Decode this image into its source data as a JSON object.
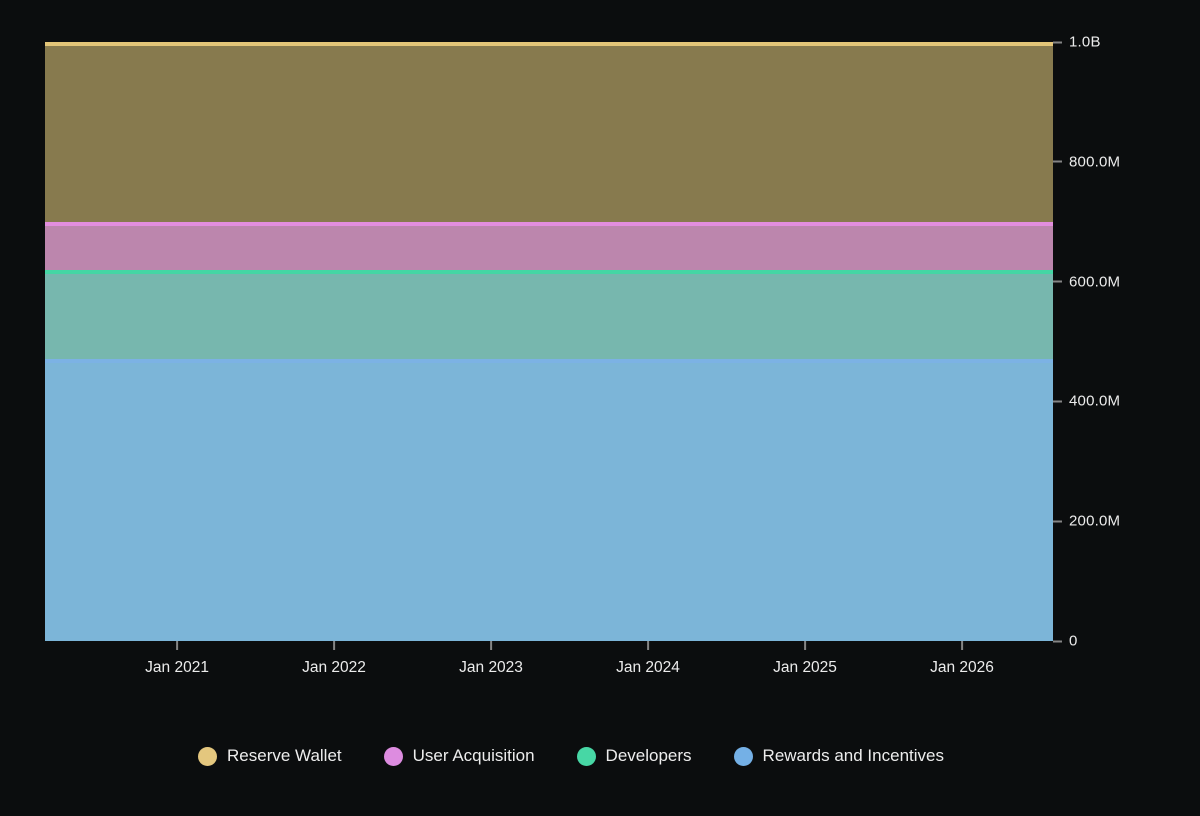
{
  "chart_data": {
    "type": "area",
    "stacked": true,
    "title": "",
    "xlabel": "",
    "ylabel": "",
    "canvas_bg": "#0b0d0e",
    "axis_text_color": "#ececec",
    "tick_mark_color": "#858585",
    "grid": false,
    "legend_position": "bottom-center",
    "y_axis": {
      "min": 0,
      "max": 1000000000,
      "side": "right",
      "ticks": [
        {
          "label": "1.0B",
          "value": 1000000000
        },
        {
          "label": "800.0M",
          "value": 800000000
        },
        {
          "label": "600.0M",
          "value": 600000000
        },
        {
          "label": "400.0M",
          "value": 400000000
        },
        {
          "label": "200.0M",
          "value": 200000000
        },
        {
          "label": "0",
          "value": 0
        }
      ]
    },
    "x_axis": {
      "ticks": [
        {
          "label": "Jan 2021",
          "pos": 0.131
        },
        {
          "label": "Jan 2022",
          "pos": 0.2867
        },
        {
          "label": "Jan 2023",
          "pos": 0.4425
        },
        {
          "label": "Jan 2024",
          "pos": 0.5982
        },
        {
          "label": "Jan 2025",
          "pos": 0.754
        },
        {
          "label": "Jan 2026",
          "pos": 0.9097
        }
      ]
    },
    "series": [
      {
        "id": "reserve-wallet",
        "name": "Reserve Wallet",
        "constant": true,
        "value": 300000000,
        "stack_span": [
          700000000,
          1000000000
        ],
        "stroke": "#e3c578",
        "fill": "#877a4e",
        "legend_color": "#e4c77e"
      },
      {
        "id": "user-acquisition",
        "name": "User Acquisition",
        "constant": true,
        "value": 80000000,
        "stack_span": [
          620000000,
          700000000
        ],
        "stroke": "#e28ede",
        "fill": "#bc86ad",
        "legend_color": "#dd8ce0"
      },
      {
        "id": "developers",
        "name": "Developers",
        "constant": true,
        "value": 150000000,
        "stack_span": [
          470000000,
          620000000
        ],
        "stroke": "#45d6a4",
        "fill": "#77b7ae",
        "legend_color": "#47d7a5"
      },
      {
        "id": "rewards-and-incentives",
        "name": "Rewards and Incentives",
        "constant": true,
        "value": 470000000,
        "stack_span": [
          0,
          470000000
        ],
        "stroke": "#7cb2e4",
        "fill": "#7cb5d8",
        "legend_color": "#74b0e6"
      }
    ]
  }
}
